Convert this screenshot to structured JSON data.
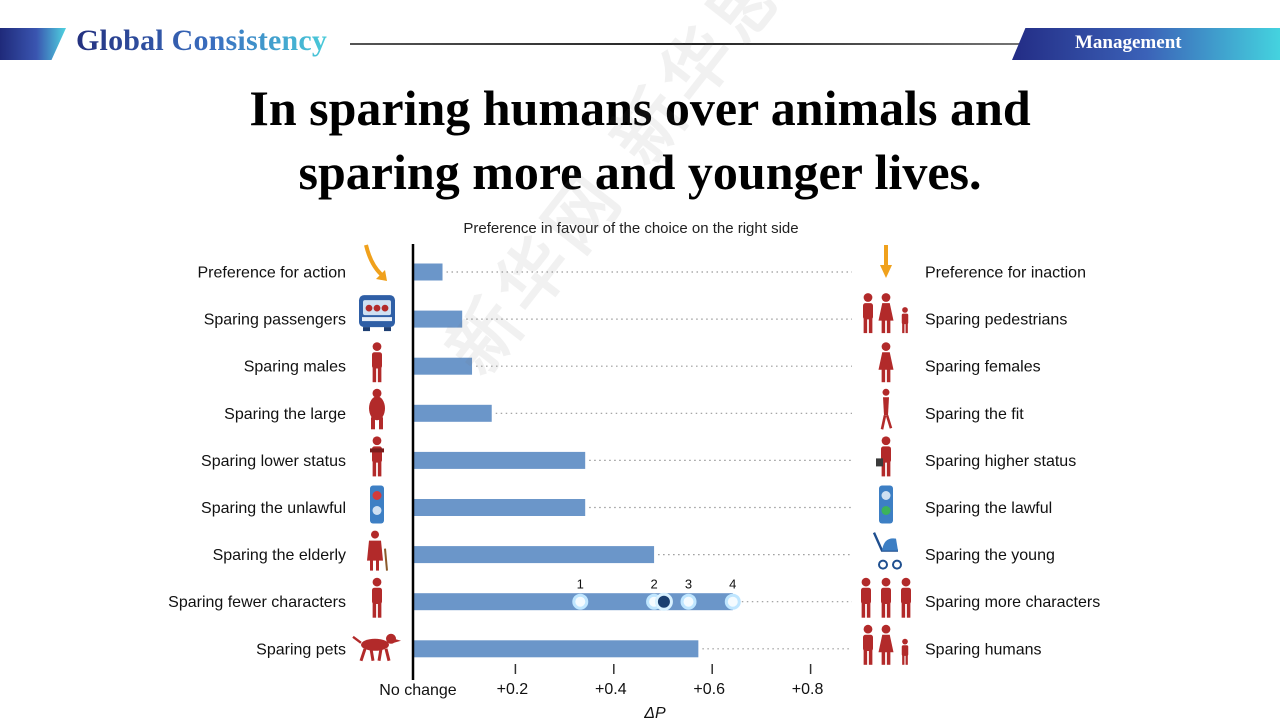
{
  "header": {
    "title": "Global Consistency",
    "section": "Management"
  },
  "headline": {
    "line1": "In sparing humans over animals and",
    "line2": "sparing more and younger lives."
  },
  "watermark": "新华网 新华思客",
  "chart_data": {
    "type": "bar",
    "orientation": "horizontal",
    "title": "Preference in favour of the choice on the right side",
    "xlabel": "ΔP",
    "xlim": [
      0,
      0.85
    ],
    "x_ticks": [
      0.2,
      0.4,
      0.6,
      0.8
    ],
    "x_tick_labels": [
      "+0.2",
      "+0.4",
      "+0.6",
      "+0.8"
    ],
    "zero_label": "No change",
    "grid": "dotted row guides",
    "bar_color": "#6b96c9",
    "icon_color": "#b22a2a",
    "rows": [
      {
        "left": "Preference for action",
        "right": "Preference for inaction",
        "value": 0.06,
        "left_icon": "curved-arrow-icon",
        "right_icon": "down-arrow-icon"
      },
      {
        "left": "Sparing passengers",
        "right": "Sparing pedestrians",
        "value": 0.1,
        "left_icon": "car-passengers-icon",
        "right_icon": "pedestrians-group-icon"
      },
      {
        "left": "Sparing males",
        "right": "Sparing females",
        "value": 0.12,
        "left_icon": "male-figure-icon",
        "right_icon": "female-figure-icon"
      },
      {
        "left": "Sparing the large",
        "right": "Sparing the fit",
        "value": 0.16,
        "left_icon": "large-figure-icon",
        "right_icon": "fit-figure-icon"
      },
      {
        "left": "Sparing lower status",
        "right": "Sparing higher status",
        "value": 0.35,
        "left_icon": "lower-status-figure-icon",
        "right_icon": "higher-status-figure-icon"
      },
      {
        "left": "Sparing the unlawful",
        "right": "Sparing the lawful",
        "value": 0.35,
        "left_icon": "red-traffic-light-icon",
        "right_icon": "green-traffic-light-icon"
      },
      {
        "left": "Sparing the elderly",
        "right": "Sparing the young",
        "value": 0.49,
        "left_icon": "elderly-figure-icon",
        "right_icon": "stroller-icon"
      },
      {
        "left": "Sparing fewer characters",
        "right": "Sparing more characters",
        "value": 0.65,
        "left_icon": "single-figure-icon",
        "right_icon": "three-figures-icon",
        "markers": [
          {
            "label": "1",
            "value": 0.34
          },
          {
            "label": "2",
            "value": 0.49
          },
          {
            "label": "",
            "value": 0.51,
            "emphasis": true
          },
          {
            "label": "3",
            "value": 0.56
          },
          {
            "label": "4",
            "value": 0.65
          }
        ]
      },
      {
        "left": "Sparing pets",
        "right": "Sparing humans",
        "value": 0.58,
        "left_icon": "dog-icon",
        "right_icon": "family-figures-icon"
      }
    ]
  }
}
